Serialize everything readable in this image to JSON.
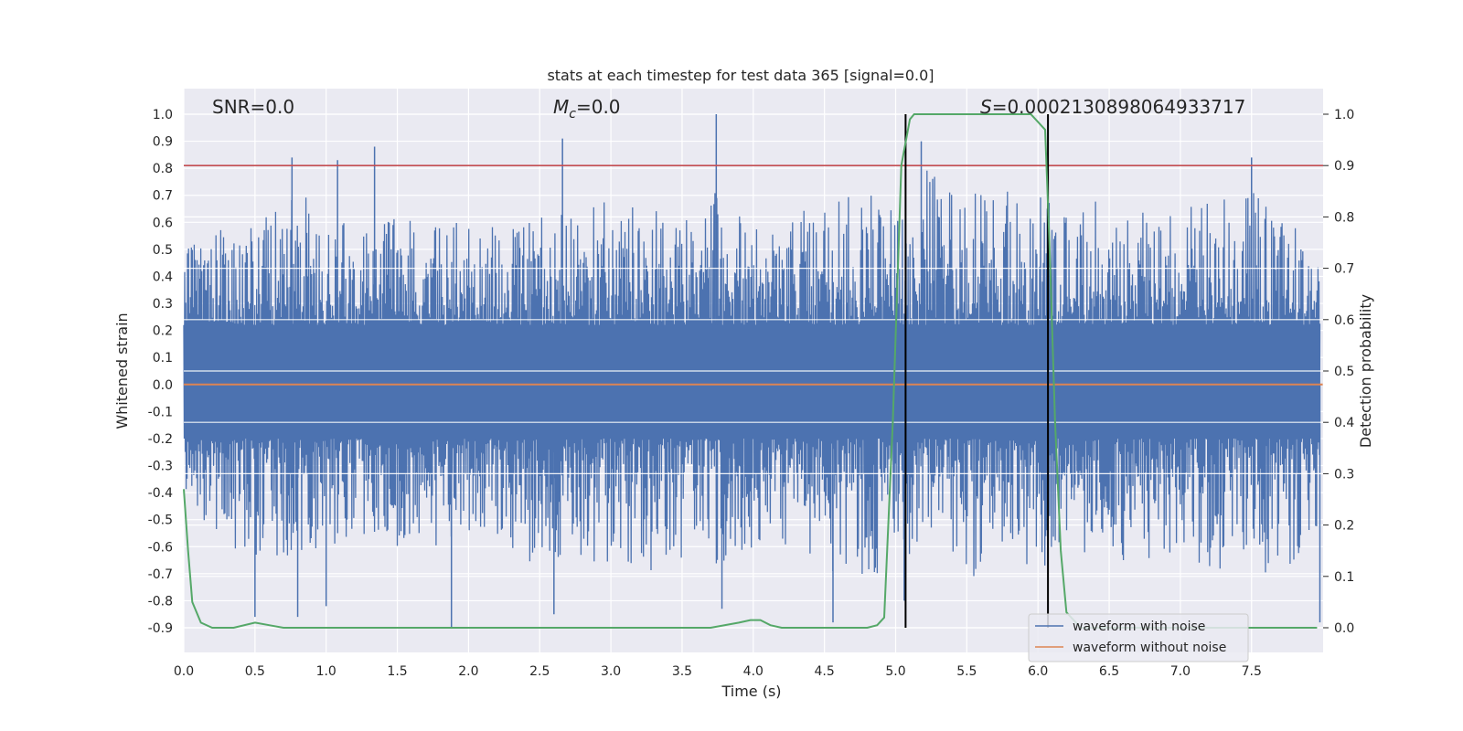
{
  "chart_data": {
    "type": "line",
    "title": "stats at each timestep for test data 365 [signal=0.0]",
    "xlabel": "Time (s)",
    "ylabel_left": "Whitened strain",
    "ylabel_right": "Detection probability",
    "xlim": [
      0.0,
      8.0
    ],
    "ylim_left": [
      -0.9,
      1.0
    ],
    "ylim_right": [
      0.0,
      1.0
    ],
    "x_ticks": [
      "0.0",
      "0.5",
      "1.0",
      "1.5",
      "2.0",
      "2.5",
      "3.0",
      "3.5",
      "4.0",
      "4.5",
      "5.0",
      "5.5",
      "6.0",
      "6.5",
      "7.0",
      "7.5"
    ],
    "y_left_ticks": [
      "1.0",
      "0.9",
      "0.8",
      "0.7",
      "0.6",
      "0.5",
      "0.4",
      "0.3",
      "0.2",
      "0.1",
      "0.0",
      "-0.1",
      "-0.2",
      "-0.3",
      "-0.4",
      "-0.5",
      "-0.6",
      "-0.7",
      "-0.8",
      "-0.9"
    ],
    "y_right_ticks": [
      "1.0",
      "0.9",
      "0.8",
      "0.7",
      "0.6",
      "0.5",
      "0.4",
      "0.3",
      "0.2",
      "0.1",
      "0.0"
    ],
    "grid": true,
    "legend_position": "bottom-right",
    "annotations": {
      "snr": "SNR=0.0",
      "mc_symbol": "M",
      "mc_sub": "c",
      "mc_value": "=0.0",
      "s_symbol": "S",
      "s_value": "=0.0002130898064933717"
    },
    "threshold_line_right": 0.9,
    "vertical_lines_x": [
      5.07,
      6.07
    ],
    "series": [
      {
        "name": "waveform with noise",
        "axis": "left",
        "color": "#4c72b0",
        "envelope": {
          "description_free": true,
          "x": [
            0.0,
            0.25,
            0.5,
            0.75,
            1.0,
            1.25,
            1.5,
            1.75,
            2.0,
            2.25,
            2.5,
            2.75,
            3.0,
            3.25,
            3.5,
            3.75,
            4.0,
            4.25,
            4.5,
            4.75,
            5.0,
            5.25,
            5.5,
            5.75,
            6.0,
            6.25,
            6.5,
            6.75,
            7.0,
            7.25,
            7.5,
            7.75,
            8.0
          ],
          "upper": [
            0.5,
            0.6,
            0.58,
            0.84,
            0.65,
            0.6,
            0.62,
            0.6,
            0.6,
            0.58,
            0.62,
            0.7,
            0.68,
            0.7,
            0.6,
            0.72,
            0.6,
            0.6,
            0.7,
            0.7,
            0.72,
            0.82,
            0.7,
            0.75,
            0.7,
            0.72,
            0.68,
            0.65,
            0.7,
            0.68,
            0.72,
            0.65,
            0.45
          ],
          "lower": [
            -0.4,
            -0.6,
            -0.7,
            -0.65,
            -0.6,
            -0.6,
            -0.62,
            -0.6,
            -0.55,
            -0.6,
            -0.7,
            -0.65,
            -0.68,
            -0.7,
            -0.7,
            -0.72,
            -0.6,
            -0.65,
            -0.7,
            -0.7,
            -0.75,
            -0.6,
            -0.72,
            -0.7,
            -0.68,
            -0.7,
            -0.68,
            -0.65,
            -0.62,
            -0.7,
            -0.7,
            -0.72,
            -0.5
          ]
        },
        "spikes": [
          {
            "x": 0.76,
            "y": 0.84
          },
          {
            "x": 1.08,
            "y": 0.83
          },
          {
            "x": 1.34,
            "y": 0.88
          },
          {
            "x": 2.66,
            "y": 0.91
          },
          {
            "x": 3.74,
            "y": 1.0
          },
          {
            "x": 5.18,
            "y": 0.9
          },
          {
            "x": 7.5,
            "y": 0.84
          },
          {
            "x": 0.5,
            "y": -0.86
          },
          {
            "x": 0.8,
            "y": -0.86
          },
          {
            "x": 1.0,
            "y": -0.82
          },
          {
            "x": 1.88,
            "y": -0.9
          },
          {
            "x": 2.6,
            "y": -0.85
          },
          {
            "x": 3.78,
            "y": -0.83
          },
          {
            "x": 4.56,
            "y": -0.88
          },
          {
            "x": 5.06,
            "y": -0.8
          },
          {
            "x": 7.98,
            "y": -0.88
          }
        ]
      },
      {
        "name": "waveform without noise",
        "axis": "left",
        "color": "#dd8452",
        "x": [
          0.0,
          8.0
        ],
        "y": [
          0.0,
          0.0
        ]
      },
      {
        "name": "",
        "axis": "right",
        "color": "#55a868",
        "x": [
          0.0,
          0.03,
          0.06,
          0.12,
          0.2,
          0.35,
          0.5,
          0.6,
          0.7,
          1.0,
          2.0,
          3.0,
          3.7,
          3.9,
          3.98,
          4.05,
          4.12,
          4.2,
          4.4,
          4.8,
          4.87,
          4.92,
          4.98,
          5.04,
          5.1,
          5.13,
          5.3,
          5.6,
          5.95,
          6.05,
          6.08,
          6.12,
          6.16,
          6.2,
          6.3,
          7.0,
          7.96
        ],
        "y": [
          0.27,
          0.15,
          0.05,
          0.01,
          0.0,
          0.0,
          0.01,
          0.005,
          0.0,
          0.0,
          0.0,
          0.0,
          0.0,
          0.01,
          0.015,
          0.015,
          0.005,
          0.0,
          0.0,
          0.0,
          0.005,
          0.02,
          0.4,
          0.9,
          0.99,
          1.0,
          1.0,
          1.0,
          1.0,
          0.97,
          0.75,
          0.4,
          0.15,
          0.03,
          0.0,
          0.0,
          0.0
        ]
      }
    ]
  }
}
